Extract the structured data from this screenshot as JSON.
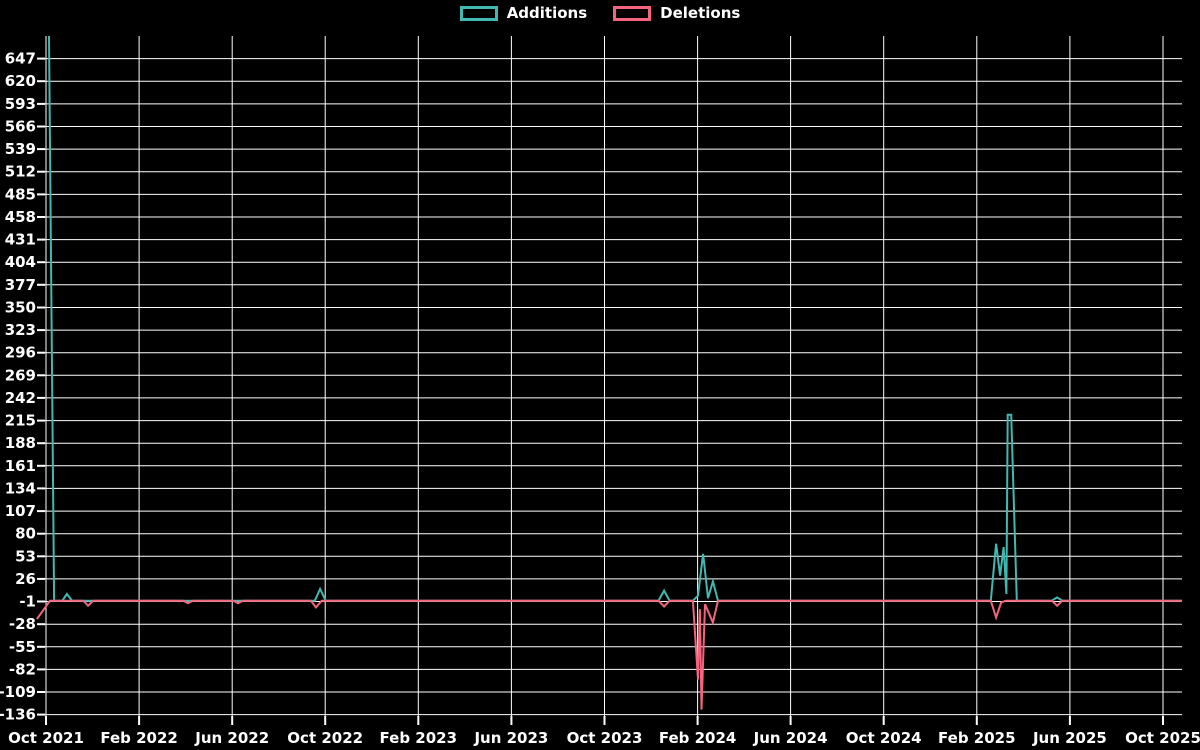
{
  "legend": {
    "items": [
      {
        "label": "Additions",
        "color": "#3fb9b1"
      },
      {
        "label": "Deletions",
        "color": "#f4647d"
      }
    ]
  },
  "chart_data": {
    "type": "line",
    "title": "",
    "xlabel": "",
    "ylabel": "",
    "background_color": "#000000",
    "grid": true,
    "grid_color": "#ffffff",
    "text_color": "#ffffff",
    "legend_position": "top-center",
    "x_tick_labels": [
      "Oct 2021",
      "Feb 2022",
      "Jun 2022",
      "Oct 2022",
      "Feb 2023",
      "Jun 2023",
      "Oct 2023",
      "Feb 2024",
      "Jun 2024",
      "Oct 2024",
      "Feb 2025",
      "Jun 2025",
      "Oct 2025"
    ],
    "x_tick_months": [
      0,
      4,
      8,
      12,
      16,
      20,
      24,
      28,
      32,
      36,
      40,
      44,
      48
    ],
    "y_ticks": [
      647,
      620,
      593,
      566,
      539,
      512,
      485,
      458,
      431,
      404,
      377,
      350,
      323,
      296,
      269,
      242,
      215,
      188,
      161,
      134,
      107,
      80,
      53,
      26,
      -1,
      -28,
      -55,
      -82,
      -109,
      -136
    ],
    "y_tick_step": 27,
    "ylim": [
      -140,
      674
    ],
    "series": [
      {
        "name": "Additions",
        "color": "#3fb9b1",
        "points": [
          [
            0.13,
            674
          ],
          [
            0.35,
            0
          ],
          [
            0.7,
            0
          ],
          [
            0.9,
            8
          ],
          [
            1.12,
            0
          ],
          [
            11.55,
            0
          ],
          [
            11.78,
            14
          ],
          [
            12.02,
            0
          ],
          [
            26.32,
            0
          ],
          [
            26.56,
            12
          ],
          [
            26.8,
            0
          ],
          [
            27.8,
            0
          ],
          [
            28.02,
            6
          ],
          [
            28.24,
            56
          ],
          [
            28.45,
            3
          ],
          [
            28.66,
            23
          ],
          [
            28.88,
            0
          ],
          [
            40.6,
            0
          ],
          [
            40.83,
            68
          ],
          [
            41.0,
            30
          ],
          [
            41.15,
            64
          ],
          [
            41.27,
            8
          ],
          [
            41.33,
            222
          ],
          [
            41.48,
            222
          ],
          [
            41.72,
            0
          ],
          [
            43.22,
            0
          ],
          [
            43.45,
            4
          ],
          [
            43.68,
            0
          ],
          [
            48.82,
            0
          ]
        ]
      },
      {
        "name": "Deletions",
        "color": "#f4647d",
        "points": [
          [
            -0.39,
            -22
          ],
          [
            0.17,
            0
          ],
          [
            1.6,
            0
          ],
          [
            1.81,
            -6
          ],
          [
            2.03,
            0
          ],
          [
            5.9,
            0
          ],
          [
            6.1,
            -3
          ],
          [
            6.32,
            0
          ],
          [
            8.05,
            0
          ],
          [
            8.25,
            -3
          ],
          [
            8.47,
            0
          ],
          [
            11.38,
            0
          ],
          [
            11.6,
            -8
          ],
          [
            11.85,
            0
          ],
          [
            26.32,
            0
          ],
          [
            26.56,
            -7
          ],
          [
            26.8,
            0
          ],
          [
            27.8,
            0
          ],
          [
            28.02,
            -94
          ],
          [
            28.1,
            -10
          ],
          [
            28.17,
            -130
          ],
          [
            28.32,
            -4
          ],
          [
            28.66,
            -26
          ],
          [
            28.88,
            0
          ],
          [
            40.6,
            0
          ],
          [
            40.83,
            -20
          ],
          [
            41.05,
            -2
          ],
          [
            41.25,
            0
          ],
          [
            43.22,
            0
          ],
          [
            43.45,
            -6
          ],
          [
            43.68,
            0
          ],
          [
            48.82,
            0
          ]
        ]
      }
    ]
  }
}
